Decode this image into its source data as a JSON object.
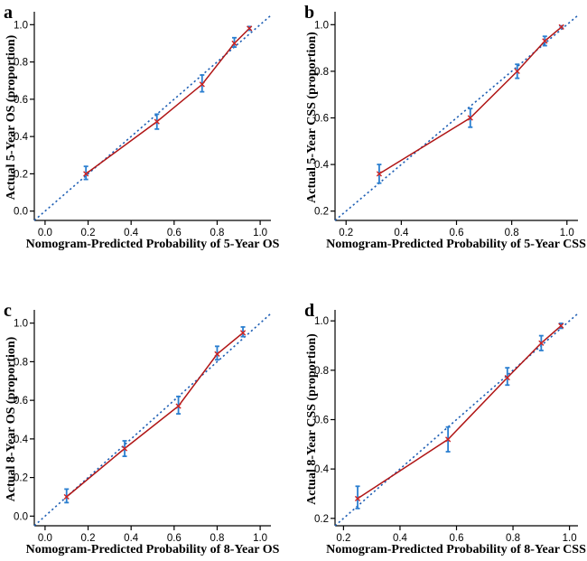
{
  "chart_data": [
    {
      "type": "line",
      "panel_label": "a",
      "title": "",
      "xlabel": "Nomogram-Predicted Probability of 5-Year OS",
      "ylabel": "Actual 5-Year OS (proportion)",
      "xlim": [
        -0.05,
        1.05
      ],
      "ylim": [
        -0.05,
        1.05
      ],
      "xticks": [
        0.0,
        0.2,
        0.4,
        0.6,
        0.8,
        1.0
      ],
      "xtick_labels": [
        "0.0",
        "0.2",
        "0.4",
        "0.6",
        "0.8",
        "1.0"
      ],
      "yticks": [
        0.0,
        0.2,
        0.4,
        0.6,
        0.8,
        1.0
      ],
      "ytick_labels": [
        "0.0",
        "0.2",
        "0.4",
        "0.6",
        "0.8",
        "1.0"
      ],
      "reference_line": "ideal diagonal (dotted)",
      "series": [
        {
          "name": "calibration",
          "x": [
            0.19,
            0.52,
            0.73,
            0.88,
            0.95
          ],
          "y": [
            0.2,
            0.48,
            0.68,
            0.9,
            0.98
          ],
          "err_low": [
            0.17,
            0.44,
            0.64,
            0.88,
            0.97
          ],
          "err_high": [
            0.24,
            0.52,
            0.73,
            0.93,
            0.99
          ]
        }
      ]
    },
    {
      "type": "line",
      "panel_label": "b",
      "title": "",
      "xlabel": "Nomogram-Predicted Probability of 5-Year CSS",
      "ylabel": "Actual 5-Year CSS (proportion)",
      "xlim": [
        0.16,
        1.04
      ],
      "ylim": [
        0.16,
        1.04
      ],
      "xticks": [
        0.2,
        0.4,
        0.6,
        0.8,
        1.0
      ],
      "xtick_labels": [
        "0.2",
        "0.4",
        "0.6",
        "0.8",
        "1.0"
      ],
      "yticks": [
        0.2,
        0.4,
        0.6,
        0.8,
        1.0
      ],
      "ytick_labels": [
        "0.2",
        "0.4",
        "0.6",
        "0.8",
        "1.0"
      ],
      "reference_line": "ideal diagonal (dotted)",
      "series": [
        {
          "name": "calibration",
          "x": [
            0.32,
            0.65,
            0.82,
            0.92,
            0.98
          ],
          "y": [
            0.36,
            0.6,
            0.8,
            0.93,
            0.99
          ],
          "err_low": [
            0.32,
            0.56,
            0.77,
            0.91,
            0.985
          ],
          "err_high": [
            0.4,
            0.64,
            0.83,
            0.95,
            0.995
          ]
        }
      ]
    },
    {
      "type": "line",
      "panel_label": "c",
      "title": "",
      "xlabel": "Nomogram-Predicted Probability of 8-Year OS",
      "ylabel": "Actual 8-Year OS (proportion)",
      "xlim": [
        -0.05,
        1.05
      ],
      "ylim": [
        -0.05,
        1.05
      ],
      "xticks": [
        0.0,
        0.2,
        0.4,
        0.6,
        0.8,
        1.0
      ],
      "xtick_labels": [
        "0.0",
        "0.2",
        "0.4",
        "0.6",
        "0.8",
        "1.0"
      ],
      "yticks": [
        0.0,
        0.2,
        0.4,
        0.6,
        0.8,
        1.0
      ],
      "ytick_labels": [
        "0.0",
        "0.2",
        "0.4",
        "0.6",
        "0.8",
        "1.0"
      ],
      "reference_line": "ideal diagonal (dotted)",
      "series": [
        {
          "name": "calibration",
          "x": [
            0.1,
            0.37,
            0.62,
            0.8,
            0.92
          ],
          "y": [
            0.1,
            0.35,
            0.57,
            0.84,
            0.95
          ],
          "err_low": [
            0.07,
            0.31,
            0.53,
            0.81,
            0.93
          ],
          "err_high": [
            0.14,
            0.39,
            0.62,
            0.88,
            0.98
          ]
        }
      ]
    },
    {
      "type": "line",
      "panel_label": "d",
      "title": "",
      "xlabel": "Nomogram-Predicted Probability of 8-Year CSS",
      "ylabel": "Actual 8-Year CSS (proportion)",
      "xlim": [
        0.17,
        1.03
      ],
      "ylim": [
        0.17,
        1.03
      ],
      "xticks": [
        0.2,
        0.4,
        0.6,
        0.8,
        1.0
      ],
      "xtick_labels": [
        "0.2",
        "0.4",
        "0.6",
        "0.8",
        "1.0"
      ],
      "yticks": [
        0.2,
        0.4,
        0.6,
        0.8,
        1.0
      ],
      "ytick_labels": [
        "0.2",
        "0.4",
        "0.6",
        "0.8",
        "1.0"
      ],
      "reference_line": "ideal diagonal (dotted)",
      "series": [
        {
          "name": "calibration",
          "x": [
            0.25,
            0.57,
            0.78,
            0.9,
            0.97
          ],
          "y": [
            0.28,
            0.52,
            0.77,
            0.91,
            0.98
          ],
          "err_low": [
            0.24,
            0.47,
            0.74,
            0.88,
            0.97
          ],
          "err_high": [
            0.33,
            0.57,
            0.81,
            0.94,
            0.99
          ]
        }
      ]
    }
  ],
  "colors": {
    "reference_line": "#1f5fb4",
    "calibration_line": "#b01515",
    "error_bar": "#2b7fd0",
    "point_marker": "#cc2222",
    "axis": "#000000"
  }
}
